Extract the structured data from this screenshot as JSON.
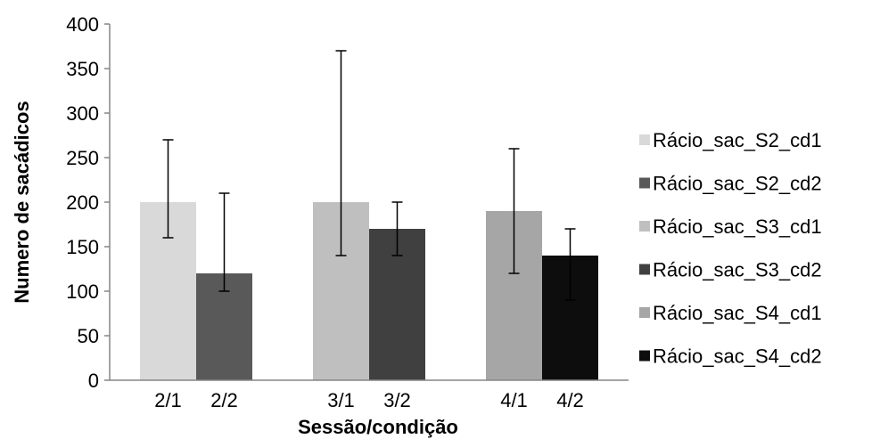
{
  "chart_data": {
    "type": "bar",
    "title": "",
    "xlabel": "Sessão/condição",
    "ylabel": "Numero de sacádicos",
    "ylim": [
      0,
      400
    ],
    "yticks": [
      0,
      50,
      100,
      150,
      200,
      250,
      300,
      350,
      400
    ],
    "grid": false,
    "legend_position": "right",
    "bars": [
      {
        "label": "2/1",
        "series": "Rácio_sac_S2_cd1",
        "value": 200,
        "err_low": 160,
        "err_high": 270,
        "color": "#d9d9d9"
      },
      {
        "label": "2/2",
        "series": "Rácio_sac_S2_cd2",
        "value": 120,
        "err_low": 100,
        "err_high": 210,
        "color": "#595959"
      },
      {
        "label": "3/1",
        "series": "Rácio_sac_S3_cd1",
        "value": 200,
        "err_low": 140,
        "err_high": 370,
        "color": "#bfbfbf"
      },
      {
        "label": "3/2",
        "series": "Rácio_sac_S3_cd2",
        "value": 170,
        "err_low": 140,
        "err_high": 200,
        "color": "#404040"
      },
      {
        "label": "4/1",
        "series": "Rácio_sac_S4_cd1",
        "value": 190,
        "err_low": 120,
        "err_high": 260,
        "color": "#a6a6a6"
      },
      {
        "label": "4/2",
        "series": "Rácio_sac_S4_cd2",
        "value": 140,
        "err_low": 90,
        "err_high": 170,
        "color": "#0d0d0d"
      }
    ],
    "legend": [
      {
        "name": "Rácio_sac_S2_cd1",
        "color": "#d9d9d9"
      },
      {
        "name": "Rácio_sac_S2_cd2",
        "color": "#595959"
      },
      {
        "name": "Rácio_sac_S3_cd1",
        "color": "#bfbfbf"
      },
      {
        "name": "Rácio_sac_S3_cd2",
        "color": "#404040"
      },
      {
        "name": "Rácio_sac_S4_cd1",
        "color": "#a6a6a6"
      },
      {
        "name": "Rácio_sac_S4_cd2",
        "color": "#0d0d0d"
      }
    ]
  }
}
